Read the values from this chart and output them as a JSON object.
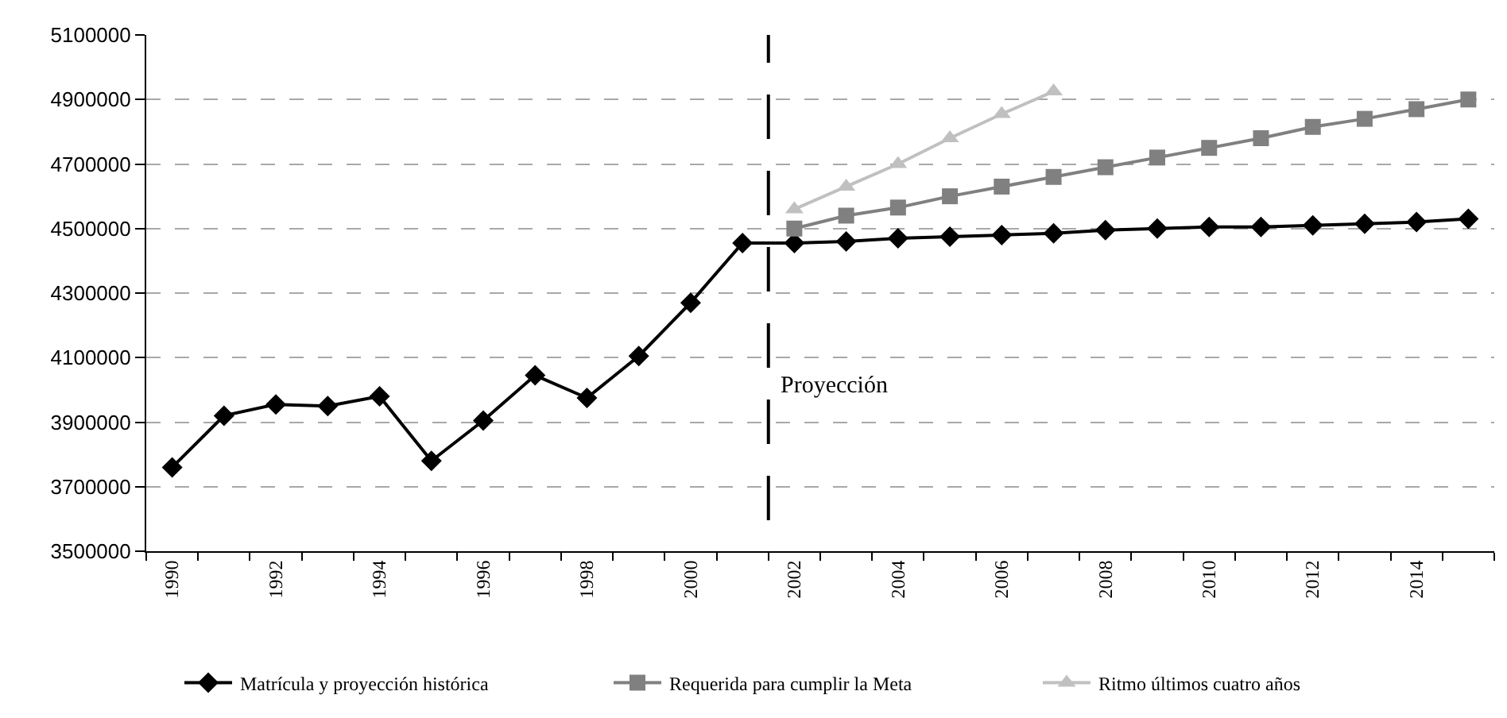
{
  "chart_data": {
    "type": "line",
    "x": [
      1990,
      1991,
      1992,
      1993,
      1994,
      1995,
      1996,
      1997,
      1998,
      1999,
      2000,
      2001,
      2002,
      2003,
      2004,
      2005,
      2006,
      2007,
      2008,
      2009,
      2010,
      2011,
      2012,
      2013,
      2014,
      2015
    ],
    "series": [
      {
        "name": "Matrícula y proyección histórica",
        "color": "#000000",
        "marker": "diamond",
        "values": [
          3760000,
          3920000,
          3955000,
          3950000,
          3980000,
          3780000,
          3905000,
          4045000,
          3975000,
          4105000,
          4270000,
          4455000,
          4455000,
          4460000,
          4470000,
          4475000,
          4480000,
          4485000,
          4495000,
          4500000,
          4505000,
          4505000,
          4510000,
          4515000,
          4520000,
          4530000
        ]
      },
      {
        "name": "Requerida para cumplir la Meta",
        "color": "#808080",
        "marker": "square",
        "x": [
          2002,
          2003,
          2004,
          2005,
          2006,
          2007,
          2008,
          2009,
          2010,
          2011,
          2012,
          2013,
          2014,
          2015
        ],
        "values": [
          4500000,
          4540000,
          4565000,
          4600000,
          4630000,
          4660000,
          4690000,
          4720000,
          4750000,
          4780000,
          4815000,
          4840000,
          4870000,
          4900000
        ]
      },
      {
        "name": "Ritmo últimos cuatro años",
        "color": "#c0c0c0",
        "marker": "triangle",
        "x": [
          2002,
          2003,
          2004,
          2005,
          2006,
          2007
        ],
        "values": [
          4560000,
          4630000,
          4700000,
          4780000,
          4855000,
          4925000
        ]
      }
    ],
    "xlim": [
      1989.5,
      2015.5
    ],
    "xticks": [
      {
        "value": 1989.5,
        "label": null
      },
      1990,
      {
        "value": 1990.5,
        "label": null
      },
      {
        "value": 1991.5,
        "label": null
      },
      1992,
      {
        "value": 1992.5,
        "label": null
      },
      {
        "value": 1993.5,
        "label": null
      },
      1994,
      {
        "value": 1994.5,
        "label": null
      },
      {
        "value": 1995.5,
        "label": null
      },
      1996,
      {
        "value": 1996.5,
        "label": null
      },
      {
        "value": 1997.5,
        "label": null
      },
      1998,
      {
        "value": 1998.5,
        "label": null
      },
      {
        "value": 1999.5,
        "label": null
      },
      2000,
      {
        "value": 2000.5,
        "label": null
      },
      {
        "value": 2001.5,
        "label": null
      },
      2002,
      {
        "value": 2002.5,
        "label": null
      },
      {
        "value": 2003.5,
        "label": null
      },
      2004,
      {
        "value": 2004.5,
        "label": null
      },
      {
        "value": 2005.5,
        "label": null
      },
      2006,
      {
        "value": 2006.5,
        "label": null
      },
      {
        "value": 2007.5,
        "label": null
      },
      2008,
      {
        "value": 2008.5,
        "label": null
      },
      {
        "value": 2009.5,
        "label": null
      },
      2010,
      {
        "value": 2010.5,
        "label": null
      },
      {
        "value": 2011.5,
        "label": null
      },
      2012,
      {
        "value": 2012.5,
        "label": null
      },
      {
        "value": 2013.5,
        "label": null
      },
      2014,
      {
        "value": 2014.5,
        "label": null
      },
      {
        "value": 2015.5,
        "label": null
      }
    ],
    "ylim": [
      3500000,
      5100000
    ],
    "yticks": [
      3500000,
      3700000,
      3900000,
      4100000,
      4300000,
      4500000,
      4700000,
      4900000,
      5100000
    ],
    "ref_lines": [
      {
        "axis": "x",
        "value": 2001.5,
        "label": "Proyección",
        "color": "#000000",
        "line_style": "dashed"
      }
    ],
    "grid": "y",
    "legend": "bottom"
  }
}
